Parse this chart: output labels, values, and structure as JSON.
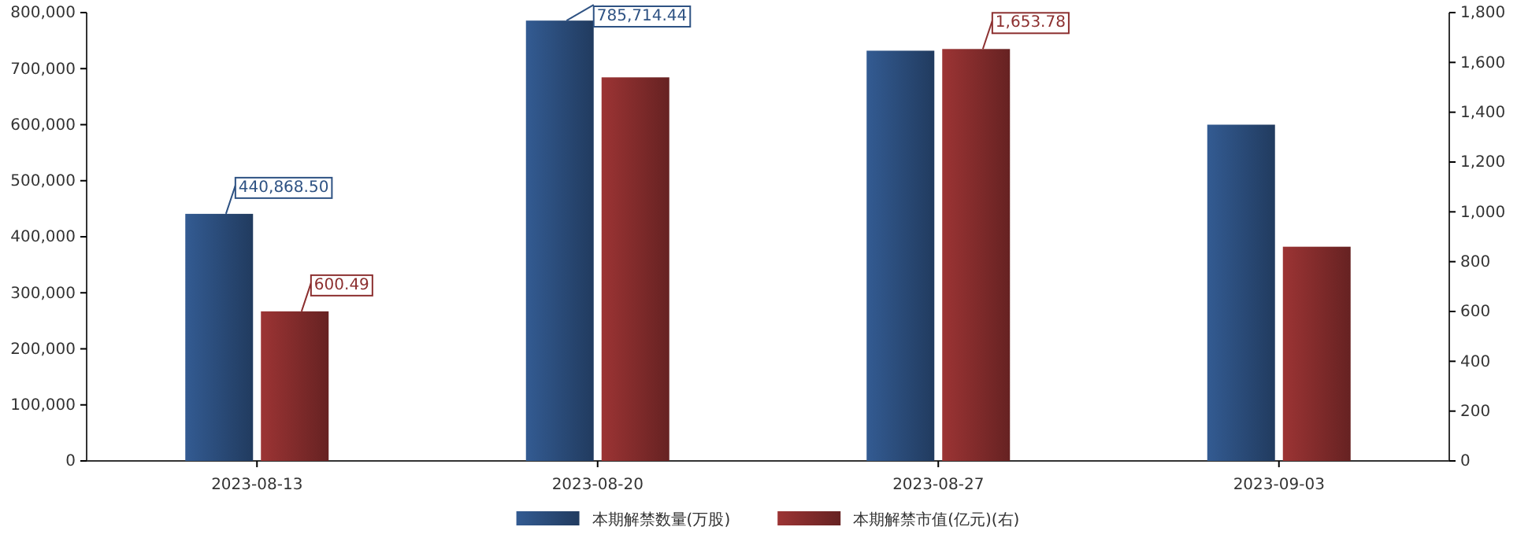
{
  "chart_data": {
    "type": "bar",
    "categories": [
      "2023-08-13",
      "2023-08-20",
      "2023-08-27",
      "2023-09-03"
    ],
    "series": [
      {
        "name": "本期解禁数量(万股)",
        "color": "#2e5283",
        "values": [
          440868.5,
          785714.44,
          732000,
          600000
        ],
        "value_labels": [
          "440,868.50",
          "785,714.44",
          null,
          null
        ]
      },
      {
        "name": "本期解禁市值(亿元)(右)",
        "color": "#8c2f2f",
        "axis": "y2",
        "values": [
          600.49,
          1540,
          1653.78,
          860
        ],
        "value_labels": [
          "600.49",
          null,
          "1,653.78",
          null
        ]
      }
    ],
    "ylim": [
      0,
      800000
    ],
    "yticks": [
      {
        "value": 0,
        "label": "0"
      },
      {
        "value": 100000,
        "label": "100,000"
      },
      {
        "value": 200000,
        "label": "200,000"
      },
      {
        "value": 300000,
        "label": "300,000"
      },
      {
        "value": 400000,
        "label": "400,000"
      },
      {
        "value": 500000,
        "label": "500,000"
      },
      {
        "value": 600000,
        "label": "600,000"
      },
      {
        "value": 700000,
        "label": "700,000"
      },
      {
        "value": 800000,
        "label": "800,000"
      }
    ],
    "y2lim": [
      0,
      1800
    ],
    "y2ticks": [
      {
        "value": 0,
        "label": "0"
      },
      {
        "value": 200,
        "label": "200"
      },
      {
        "value": 400,
        "label": "400"
      },
      {
        "value": 600,
        "label": "600"
      },
      {
        "value": 800,
        "label": "800"
      },
      {
        "value": 1000,
        "label": "1,000"
      },
      {
        "value": 1200,
        "label": "1,200"
      },
      {
        "value": 1400,
        "label": "1,400"
      },
      {
        "value": 1600,
        "label": "1,600"
      },
      {
        "value": 1800,
        "label": "1,800"
      }
    ],
    "legend": "bottom",
    "grid": false
  }
}
